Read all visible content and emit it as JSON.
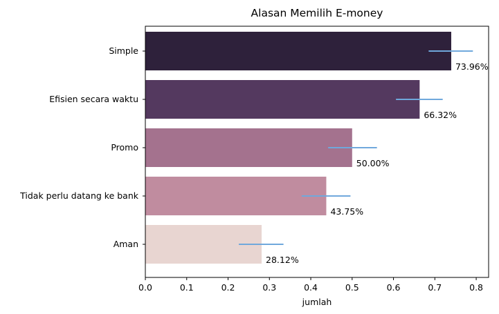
{
  "chart_data": {
    "type": "bar",
    "orientation": "horizontal",
    "title": "Alasan Memilih E-money",
    "xlabel": "jumlah",
    "ylabel": "",
    "xlim": [
      0,
      0.83
    ],
    "xticks": [
      0.0,
      0.1,
      0.2,
      0.3,
      0.4,
      0.5,
      0.6,
      0.7,
      0.8
    ],
    "xtick_labels": [
      "0.0",
      "0.1",
      "0.2",
      "0.3",
      "0.4",
      "0.5",
      "0.6",
      "0.7",
      "0.8"
    ],
    "grid": false,
    "categories": [
      "Simple",
      "Efisien secara waktu",
      "Promo",
      "Tidak perlu datang ke bank",
      "Aman"
    ],
    "values": [
      0.7396,
      0.6632,
      0.5,
      0.4375,
      0.2812
    ],
    "data_labels": [
      "73.96%",
      "66.32%",
      "50.00%",
      "43.75%",
      "28.12%"
    ],
    "error_intervals": [
      [
        0.685,
        0.792
      ],
      [
        0.606,
        0.719
      ],
      [
        0.442,
        0.56
      ],
      [
        0.378,
        0.496
      ],
      [
        0.226,
        0.334
      ]
    ],
    "bar_colors": [
      "#2e213b",
      "#54395f",
      "#a4728e",
      "#c08c9f",
      "#e8d5d1"
    ],
    "error_color": "#6fa8dc"
  }
}
